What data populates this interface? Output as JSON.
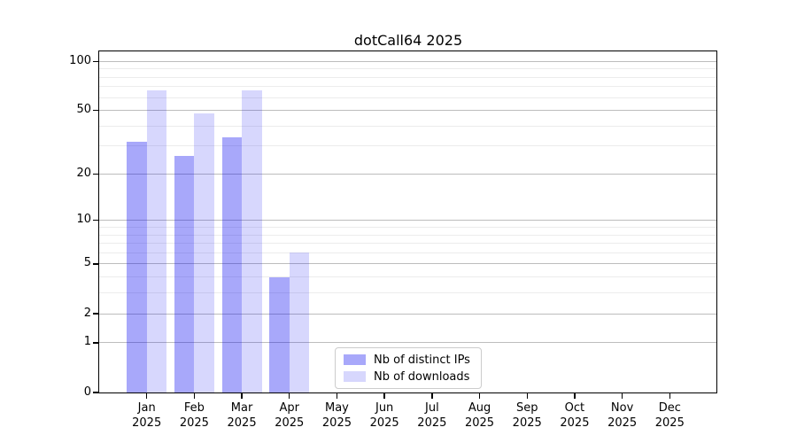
{
  "chart_data": {
    "type": "bar",
    "title": "dotCall64 2025",
    "categories": [
      "Jan",
      "Feb",
      "Mar",
      "Apr",
      "May",
      "Jun",
      "Jul",
      "Aug",
      "Sep",
      "Oct",
      "Nov",
      "Dec"
    ],
    "x_tick_year": "2025",
    "series": [
      {
        "name": "Nb of distinct IPs",
        "color": "rgba(0,0,240,0.34)",
        "values": [
          32,
          26,
          34,
          4,
          0,
          0,
          0,
          0,
          0,
          0,
          0,
          0
        ]
      },
      {
        "name": "Nb of downloads",
        "color": "rgba(0,0,240,0.155)",
        "values": [
          66,
          48,
          66,
          6,
          0,
          0,
          0,
          0,
          0,
          0,
          0,
          0
        ]
      }
    ],
    "xlabel": "",
    "ylabel": "",
    "y_scale": "log1p",
    "ylim": [
      0,
      115
    ],
    "y_major_ticks": [
      0,
      1,
      2,
      5,
      10,
      20,
      50,
      100
    ],
    "y_minor_gridlines": [
      3,
      4,
      6,
      7,
      8,
      9,
      30,
      40,
      60,
      70,
      80,
      90
    ],
    "grid": true,
    "legend_position": "lower center",
    "colors": {
      "grid_major": "#bdbdbd",
      "grid_minor": "#ececec",
      "spine": "#000000",
      "legend_border": "#cccccc",
      "background": "#ffffff"
    }
  }
}
